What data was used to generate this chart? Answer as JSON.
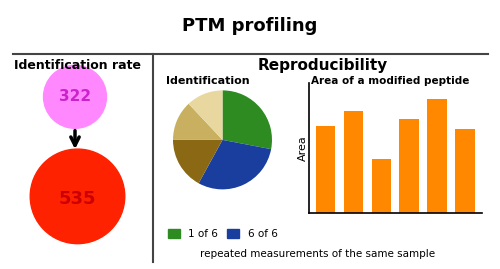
{
  "title": "PTM profiling",
  "left_title": "Identification rate",
  "circle_small_color": "#FF88FF",
  "circle_small_number": "322",
  "circle_small_text_color": "#CC22CC",
  "circle_large_color": "#FF2200",
  "circle_large_number": "535",
  "circle_large_text_color": "#CC0000",
  "right_title": "Reproducibility",
  "pie_title": "Identification",
  "pie_slices": [
    0.28,
    0.3,
    0.17,
    0.13,
    0.12
  ],
  "pie_colors": [
    "#2E8B22",
    "#1A3E9E",
    "#8B6914",
    "#C8B060",
    "#E8D8A0"
  ],
  "legend_labels": [
    "1 of 6",
    "6 of 6"
  ],
  "legend_colors": [
    "#2E8B22",
    "#1A3E9E"
  ],
  "bar_title": "Area of a modified peptide",
  "bar_values": [
    0.72,
    0.85,
    0.45,
    0.78,
    0.95,
    0.7
  ],
  "bar_color": "#FF8800",
  "bar_ylabel": "Area",
  "bottom_text": "repeated measurements of the same sample",
  "bg_color": "#FFFFFF",
  "border_color": "#444444"
}
